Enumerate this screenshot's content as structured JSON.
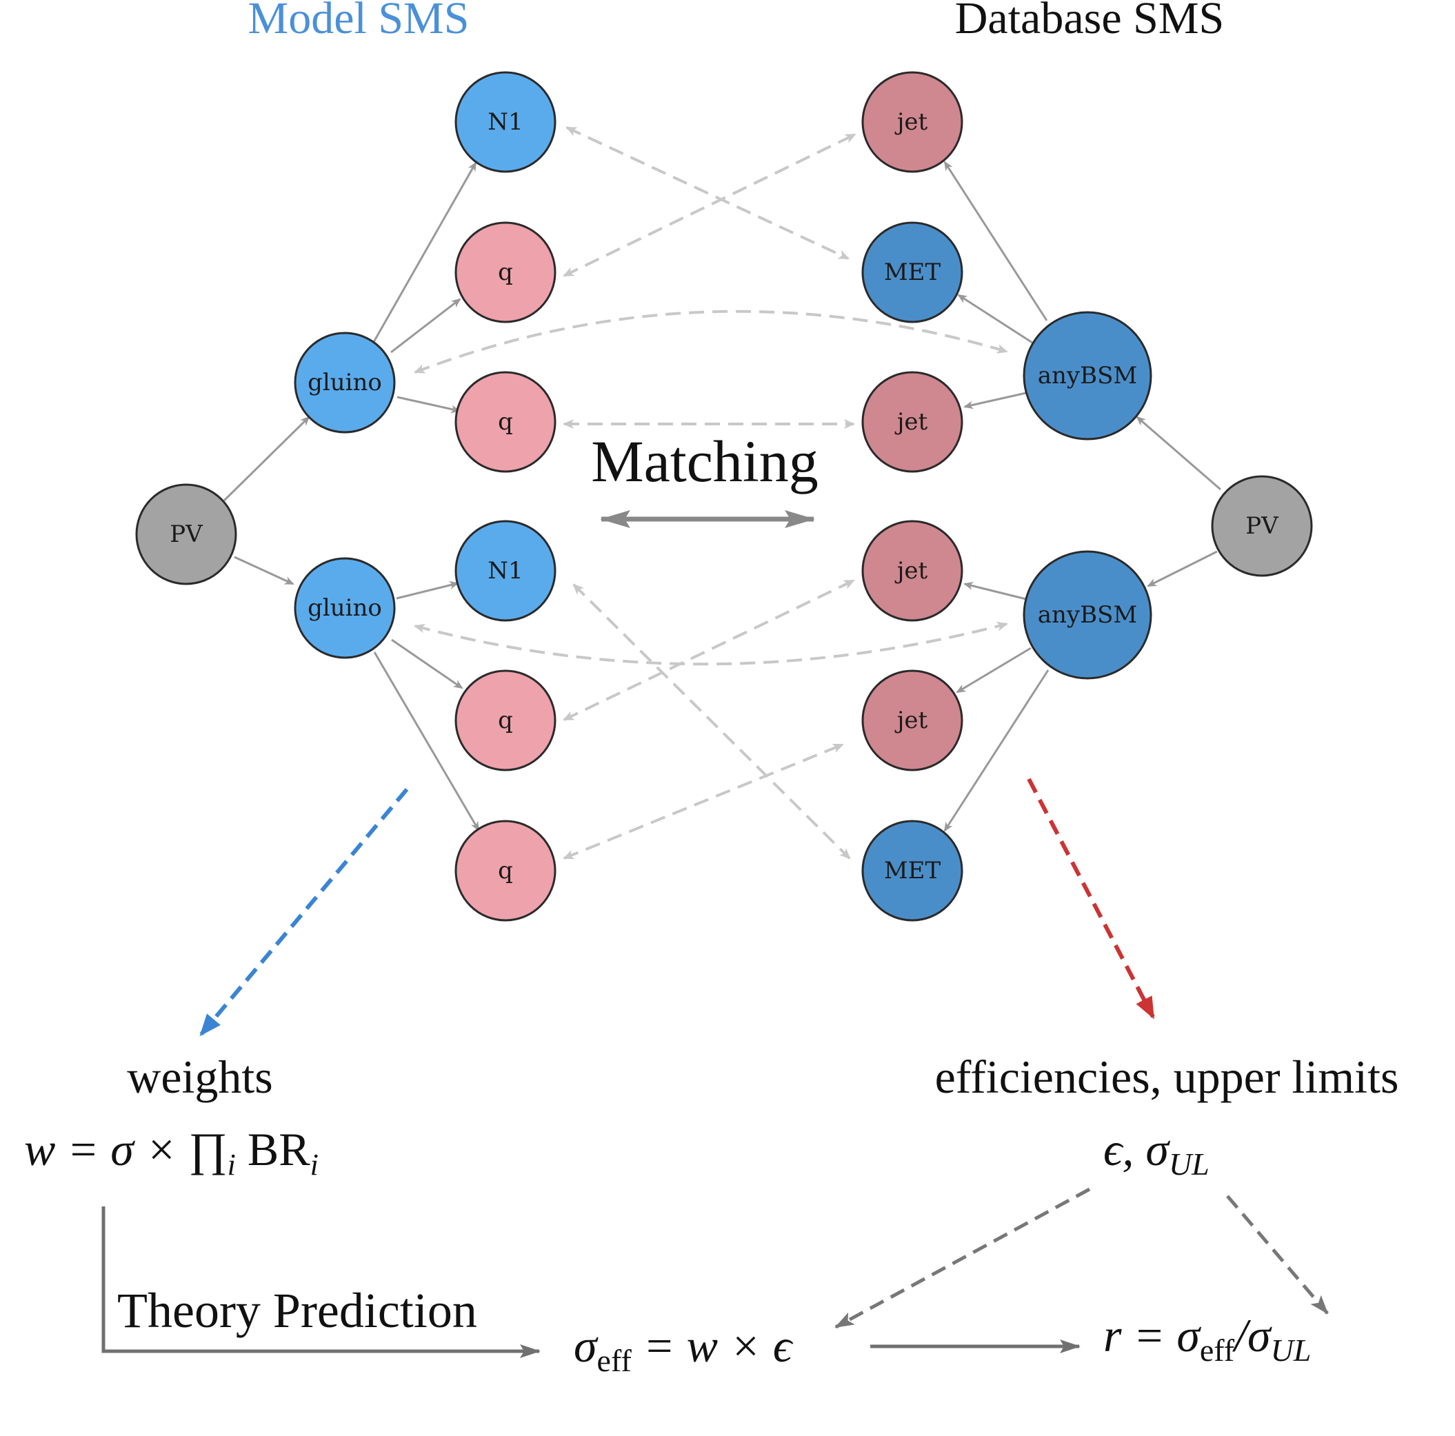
{
  "titles": {
    "model": "Model SMS",
    "database": "Database SMS"
  },
  "colors": {
    "model_title": "#4a90d9",
    "bsm_light": "#5aabec",
    "bsm_dark": "#4a8ec9",
    "sm_light": "#eea2ab",
    "sm_dark": "#cf8790",
    "pv": "#a3a3a3",
    "edge": "#999999",
    "match_edge": "#c8c8c8",
    "blue_arrow": "#3b84d4",
    "red_arrow": "#cc3333",
    "flow": "#707070"
  },
  "nodes": {
    "model_pv": "PV",
    "model_gluino_top": "gluino",
    "model_gluino_bottom": "gluino",
    "model_n1_top": "N1",
    "model_q_top_1": "q",
    "model_q_top_2": "q",
    "model_n1_bottom": "N1",
    "model_q_bottom_1": "q",
    "model_q_bottom_2": "q",
    "db_pv": "PV",
    "db_anybsm_top": "anyBSM",
    "db_anybsm_bottom": "anyBSM",
    "db_jet_1": "jet",
    "db_met_top": "MET",
    "db_jet_2": "jet",
    "db_jet_3": "jet",
    "db_jet_4": "jet",
    "db_met_bottom": "MET"
  },
  "matching_label": "Matching",
  "weights": {
    "heading": "weights",
    "formula_w": "w",
    "formula_eq": " = σ × ∏",
    "formula_i1": "i",
    "formula_br": " BR",
    "formula_i2": "i"
  },
  "limits": {
    "heading": "efficiencies, upper limits",
    "formula_eps": "ϵ, σ",
    "formula_ul": "UL"
  },
  "theory_prediction_label": "Theory Prediction",
  "sigma_eff": {
    "sigma": "σ",
    "sub": "eff",
    "rest": " = w × ϵ"
  },
  "ratio": {
    "r": "r",
    "eq": " = σ",
    "sub1": "eff",
    "slash": "/σ",
    "sub2": "UL"
  }
}
